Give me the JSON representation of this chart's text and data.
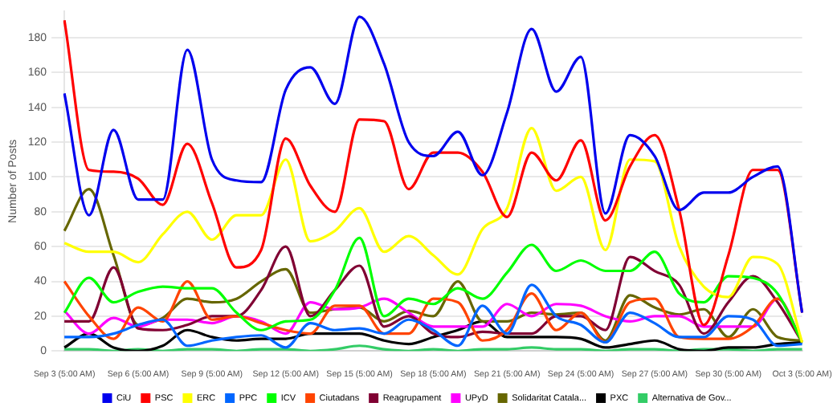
{
  "chart_data": {
    "type": "line",
    "ylabel": "Number of Posts",
    "categories": [
      "Sep 3 (5:00 AM)",
      null,
      null,
      "Sep 6 (5:00 AM)",
      null,
      null,
      "Sep 9 (5:00 AM)",
      null,
      null,
      "Sep 12 (5:00 AM)",
      null,
      null,
      "Sep 15 (5:00 AM)",
      null,
      null,
      "Sep 18 (5:00 AM)",
      null,
      null,
      "Sep 21 (5:00 AM)",
      null,
      null,
      "Sep 24 (5:00 AM)",
      null,
      null,
      "Sep 27 (5:00 AM)",
      null,
      null,
      "Sep 30 (5:00 AM)",
      null,
      null,
      "Oct 3 (5:00 AM)"
    ],
    "ylim": [
      0,
      195
    ],
    "yticks": [
      0,
      20,
      40,
      60,
      80,
      100,
      120,
      140,
      160,
      180
    ],
    "grid": "y",
    "legend": "bottom",
    "marker": "none",
    "series": [
      {
        "name": "CiU",
        "color": "#0000ee",
        "values": [
          148,
          78,
          127,
          87,
          87,
          173,
          110,
          98,
          97,
          150,
          163,
          142,
          192,
          165,
          120,
          112,
          126,
          101,
          137,
          185,
          149,
          169,
          79,
          124,
          112,
          81,
          91,
          91,
          100,
          106,
          22
        ]
      },
      {
        "name": "PSC",
        "color": "#ff0000",
        "values": [
          190,
          104,
          103,
          99,
          84,
          119,
          85,
          48,
          58,
          122,
          95,
          80,
          133,
          132,
          93,
          114,
          114,
          103,
          77,
          114,
          98,
          121,
          75,
          106,
          124,
          81,
          15,
          55,
          104,
          104,
          22
        ]
      },
      {
        "name": "ERC",
        "color": "#ffff00",
        "values": [
          62,
          57,
          57,
          51,
          67,
          80,
          64,
          78,
          78,
          110,
          63,
          69,
          82,
          57,
          66,
          55,
          44,
          70,
          82,
          128,
          92,
          100,
          58,
          110,
          109,
          60,
          37,
          31,
          54,
          50,
          5
        ]
      },
      {
        "name": "PPC",
        "color": "#0066ff",
        "values": [
          8,
          8,
          10,
          15,
          18,
          3,
          6,
          8,
          9,
          2,
          16,
          12,
          13,
          10,
          18,
          12,
          3,
          26,
          10,
          38,
          20,
          15,
          5,
          22,
          16,
          8,
          8,
          20,
          18,
          3,
          4
        ]
      },
      {
        "name": "ICV",
        "color": "#00ff00",
        "values": [
          22,
          42,
          28,
          34,
          37,
          36,
          36,
          22,
          12,
          17,
          18,
          35,
          65,
          20,
          30,
          27,
          36,
          30,
          45,
          61,
          46,
          52,
          46,
          46,
          57,
          33,
          28,
          43,
          42,
          33,
          5
        ]
      },
      {
        "name": "Ciutadans",
        "color": "#ff4400",
        "values": [
          40,
          20,
          7,
          25,
          17,
          40,
          18,
          20,
          16,
          12,
          10,
          26,
          26,
          10,
          10,
          30,
          28,
          6,
          12,
          33,
          12,
          22,
          5,
          28,
          30,
          8,
          7,
          7,
          14,
          30,
          5
        ]
      },
      {
        "name": "Reagrupament",
        "color": "#800033",
        "values": [
          17,
          17,
          48,
          13,
          12,
          15,
          20,
          20,
          35,
          60,
          20,
          35,
          49,
          14,
          20,
          10,
          8,
          11,
          10,
          10,
          20,
          20,
          12,
          54,
          46,
          38,
          10,
          28,
          43,
          28,
          5
        ]
      },
      {
        "name": "UPyD",
        "color": "#ff00ff",
        "values": [
          23,
          10,
          19,
          14,
          18,
          18,
          16,
          20,
          17,
          10,
          28,
          24,
          25,
          30,
          22,
          14,
          14,
          14,
          27,
          20,
          27,
          26,
          20,
          17,
          20,
          20,
          14,
          14,
          14,
          30,
          5
        ]
      },
      {
        "name": "Solidaritat Catala...",
        "color": "#666600",
        "values": [
          69,
          93,
          55,
          15,
          19,
          30,
          28,
          30,
          40,
          47,
          22,
          24,
          25,
          17,
          23,
          20,
          40,
          17,
          17,
          22,
          21,
          22,
          6,
          32,
          25,
          21,
          24,
          8,
          24,
          8,
          6
        ]
      },
      {
        "name": "PXC",
        "color": "#000000",
        "values": [
          2,
          10,
          2,
          0,
          3,
          12,
          8,
          6,
          7,
          7,
          10,
          10,
          10,
          6,
          4,
          8,
          12,
          17,
          8,
          8,
          8,
          7,
          2,
          4,
          6,
          1,
          0,
          2,
          2,
          4,
          5
        ]
      },
      {
        "name": "Alternativa de Gov...",
        "color": "#33cc66",
        "values": [
          1,
          1,
          0,
          1,
          0,
          1,
          1,
          0,
          1,
          1,
          0,
          1,
          3,
          1,
          0,
          1,
          0,
          1,
          1,
          2,
          1,
          1,
          0,
          1,
          1,
          0,
          1,
          1,
          0,
          1,
          1
        ]
      }
    ]
  }
}
